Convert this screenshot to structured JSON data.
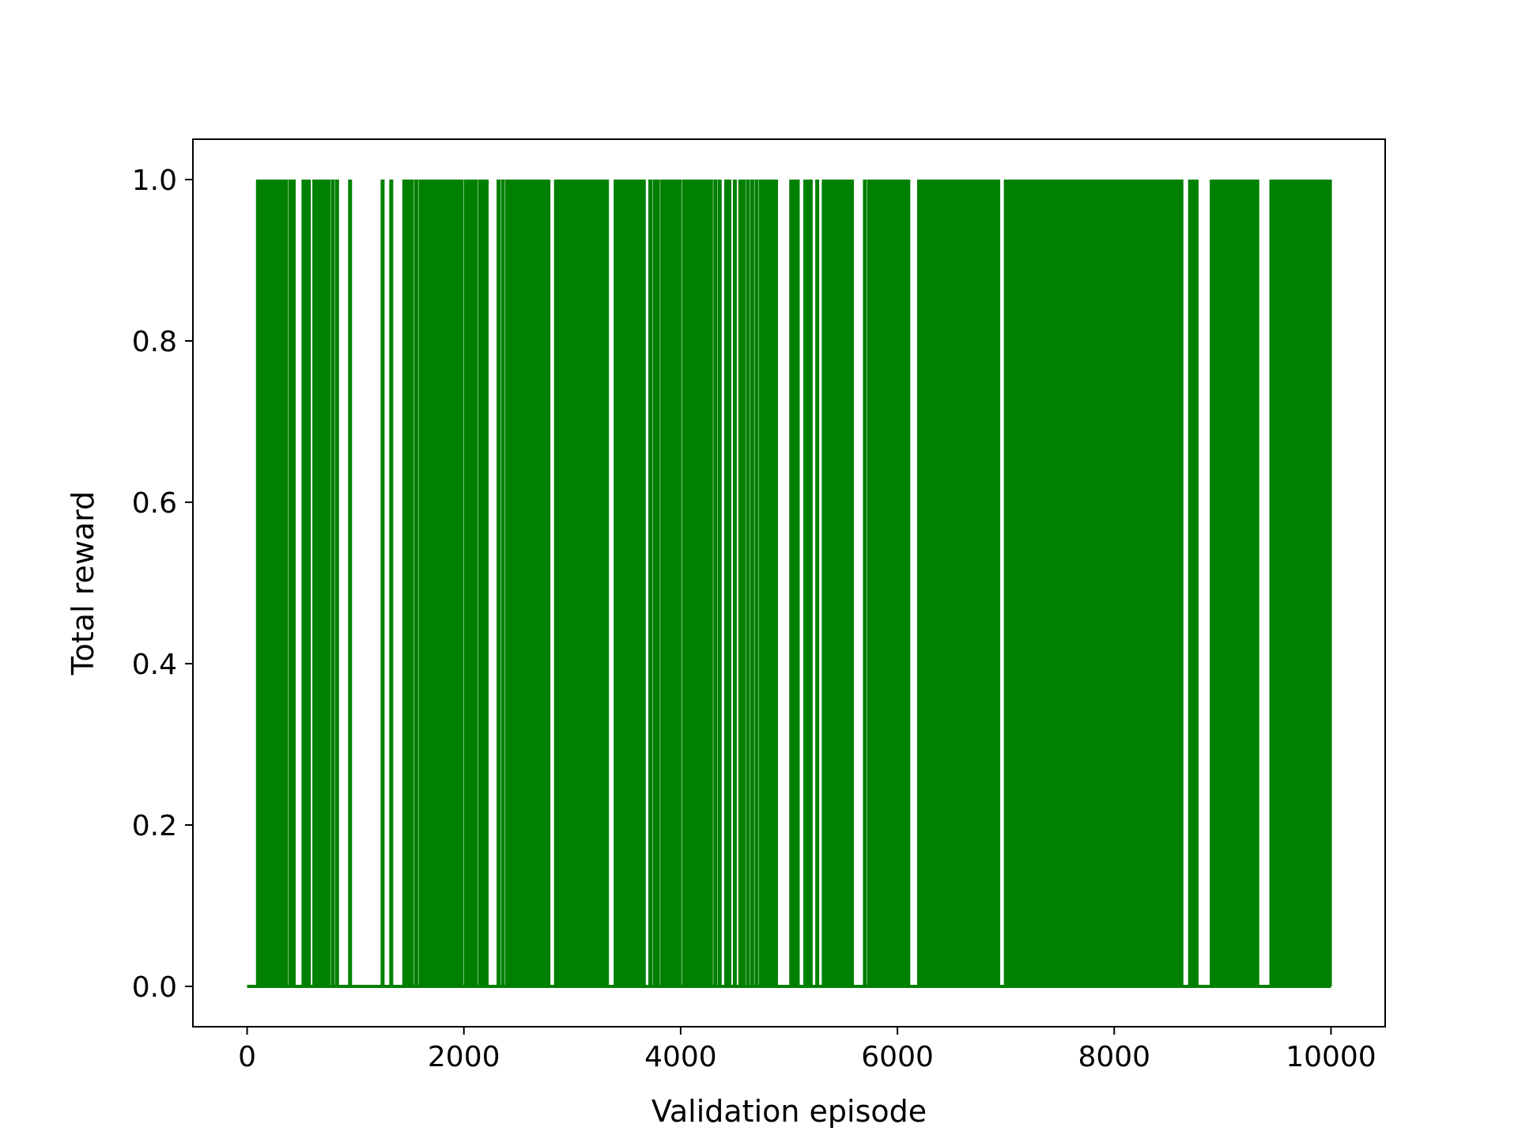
{
  "chart_data": {
    "type": "line",
    "title": "",
    "xlabel": "Validation episode",
    "ylabel": "Total reward",
    "xlim": [
      -500,
      10500
    ],
    "ylim": [
      -0.05,
      1.05
    ],
    "x_ticks": [
      0,
      2000,
      4000,
      6000,
      8000,
      10000
    ],
    "x_tick_labels": [
      "0",
      "2000",
      "4000",
      "6000",
      "8000",
      "10000"
    ],
    "y_ticks": [
      0.0,
      0.2,
      0.4,
      0.6,
      0.8,
      1.0
    ],
    "y_tick_labels": [
      "0.0",
      "0.2",
      "0.4",
      "0.6",
      "0.8",
      "1.0"
    ],
    "grid": false,
    "legend": "none",
    "series": [
      {
        "color": "#008000",
        "x_start": 0,
        "x_end": 10000,
        "baseline_value": 0.0,
        "spike_value": 1.0,
        "spike_episodes": [
          100,
          115,
          130,
          150,
          180,
          200,
          215,
          235,
          250,
          270,
          300,
          330,
          360,
          400,
          430,
          520,
          550,
          570,
          620,
          650,
          680,
          700,
          720,
          750,
          790,
          830,
          950,
          1250,
          1330,
          1450,
          1480,
          1500,
          1520,
          1560,
          1600,
          1620,
          1630,
          1650,
          1680,
          1700,
          1720,
          1740,
          1760,
          1780,
          1800,
          1820,
          1850,
          1870,
          1900,
          1920,
          1950,
          1980,
          2020,
          2050,
          2080,
          2110,
          2150,
          2170,
          2190,
          2210,
          2320,
          2360,
          2400,
          2420,
          2440,
          2460,
          2480,
          2500,
          2520,
          2540,
          2560,
          2580,
          2600,
          2620,
          2640,
          2660,
          2680,
          2700,
          2720,
          2740,
          2760,
          2780,
          2850,
          2870,
          2890,
          2910,
          2930,
          2950,
          2970,
          3000,
          3020,
          3050,
          3080,
          3110,
          3140,
          3170,
          3200,
          3220,
          3250,
          3270,
          3300,
          3320,
          3400,
          3420,
          3450,
          3480,
          3510,
          3540,
          3570,
          3600,
          3620,
          3640,
          3660,
          3720,
          3760,
          3790,
          3830,
          3850,
          3870,
          3900,
          3930,
          3960,
          3990,
          4030,
          4060,
          4090,
          4100,
          4110,
          4120,
          4130,
          4140,
          4170,
          4190,
          4220,
          4250,
          4280,
          4320,
          4360,
          4420,
          4450,
          4500,
          4550,
          4580,
          4620,
          4660,
          4700,
          4740,
          4760,
          4780,
          4800,
          4830,
          4860,
          4880,
          5020,
          5050,
          5080,
          5150,
          5180,
          5200,
          5260,
          5320,
          5350,
          5380,
          5410,
          5440,
          5470,
          5500,
          5530,
          5560,
          5580,
          5700,
          5740,
          5770,
          5800,
          5830,
          5860,
          5880,
          5900,
          5920,
          5940,
          5960,
          5980,
          6010,
          6040,
          6070,
          6100,
          6200,
          6230,
          6250,
          6270,
          6300,
          6320,
          6340,
          6360,
          6380,
          6400,
          6420,
          6440,
          6460,
          6480,
          6500,
          6520,
          6540,
          6570,
          6600,
          6620,
          6640,
          6660,
          6680,
          6700,
          6720,
          6740,
          6760,
          6780,
          6800,
          6820,
          6840,
          6860,
          6880,
          6900,
          6930,
          7000,
          7010,
          7020,
          7030,
          7040,
          7050,
          7060,
          7070,
          7080,
          7090,
          7100,
          7110,
          7130,
          7150,
          7170,
          7190,
          7210,
          7230,
          7250,
          7270,
          7290,
          7310,
          7330,
          7350,
          7370,
          7390,
          7410,
          7430,
          7450,
          7470,
          7490,
          7510,
          7530,
          7550,
          7570,
          7600,
          7620,
          7640,
          7660,
          7680,
          7700,
          7720,
          7740,
          7760,
          7780,
          7800,
          7820,
          7840,
          7860,
          7880,
          7900,
          7920,
          7940,
          7960,
          7980,
          8000,
          8020,
          8040,
          8060,
          8080,
          8100,
          8120,
          8140,
          8160,
          8180,
          8200,
          8220,
          8240,
          8260,
          8280,
          8300,
          8320,
          8340,
          8360,
          8380,
          8400,
          8420,
          8440,
          8460,
          8480,
          8500,
          8520,
          8540,
          8560,
          8580,
          8600,
          8620,
          8700,
          8720,
          8740,
          8760,
          8900,
          8930,
          8960,
          8990,
          9020,
          9050,
          9080,
          9110,
          9140,
          9170,
          9200,
          9230,
          9260,
          9290,
          9320,
          9450,
          9480,
          9510,
          9540,
          9570,
          9600,
          9630,
          9660,
          9690,
          9720,
          9750,
          9780,
          9810,
          9840,
          9870,
          9900,
          9930,
          9960,
          9990
        ]
      }
    ]
  }
}
